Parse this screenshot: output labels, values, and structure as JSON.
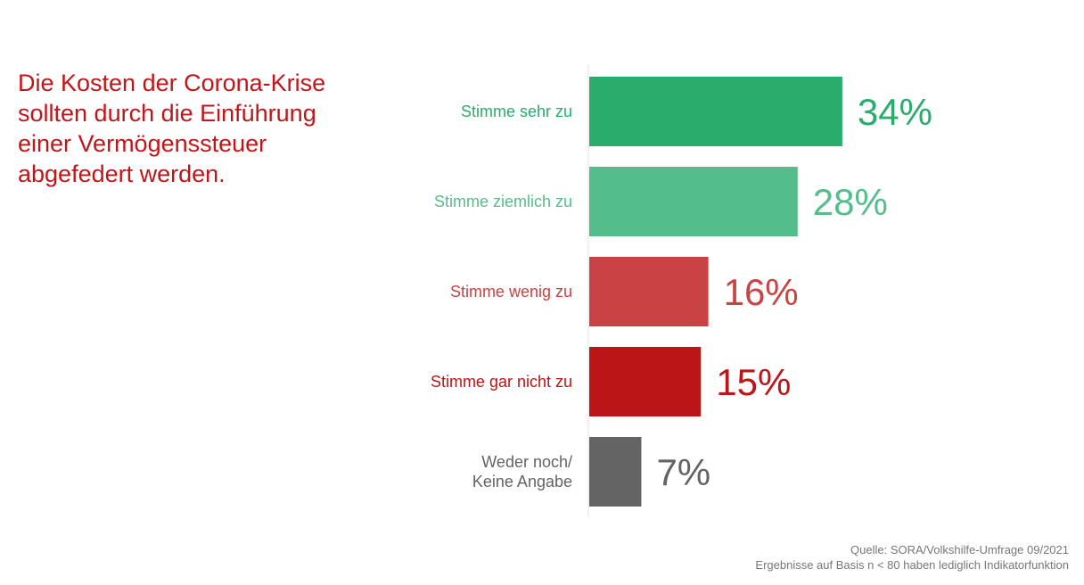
{
  "title": "Die Kosten der Corona-Krise\nsollten durch die Einführung\neiner Vermögenssteuer\nabgefedert werden.",
  "source": {
    "line1": "Quelle: SORA/Volkshilfe-Umfrage 09/2021",
    "line2": "Ergebnisse auf Basis n < 80 haben lediglich Indikatorfunktion"
  },
  "colors": {
    "title": "#c0161a",
    "source": "#777777"
  },
  "chart_data": {
    "type": "bar",
    "orientation": "horizontal",
    "categories": [
      [
        "Stimme sehr zu"
      ],
      [
        "Stimme ziemlich zu"
      ],
      [
        "Stimme wenig zu"
      ],
      [
        "Stimme gar nicht zu"
      ],
      [
        "Weder noch/",
        "Keine Angabe"
      ]
    ],
    "values": [
      34,
      28,
      16,
      15,
      7
    ],
    "value_labels": [
      "34%",
      "28%",
      "16%",
      "15%",
      "7%"
    ],
    "colors": [
      "#2aac6c",
      "#54bd8c",
      "#c94244",
      "#bb1518",
      "#646464"
    ],
    "unit": "%",
    "xlim": [
      0,
      40
    ],
    "grid": false,
    "legend": "none"
  }
}
